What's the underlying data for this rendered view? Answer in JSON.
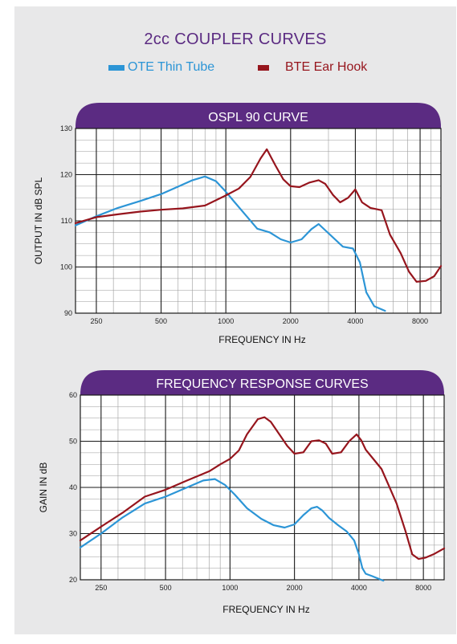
{
  "title": "2cc COUPLER CURVES",
  "legend": [
    {
      "label": "OTE Thin Tube",
      "color": "#2c95d6"
    },
    {
      "label": "BTE Ear Hook",
      "color": "#96151d"
    }
  ],
  "colors": {
    "banner": "#5b2b82",
    "ote": "#2c95d6",
    "bte": "#96151d"
  },
  "chart_data": [
    {
      "type": "line",
      "title": "OSPL 90 CURVE",
      "xlabel": "FREQUENCY IN Hz",
      "ylabel": "OUTPUT IN dB SPL",
      "x_scale": "log",
      "xlim": [
        200,
        10000
      ],
      "ylim": [
        90,
        130
      ],
      "x_ticks": [
        250,
        500,
        1000,
        2000,
        4000,
        8000
      ],
      "x_tick_labels": [
        "250",
        "500",
        "1000",
        "2000",
        "4000",
        "8000"
      ],
      "y_ticks": [
        90,
        100,
        110,
        120,
        130
      ],
      "y_tick_labels": [
        "90",
        "100",
        "110",
        "120",
        "130"
      ],
      "grid": true,
      "series": [
        {
          "name": "OTE Thin Tube",
          "color": "#2c95d6",
          "x": [
            200,
            250,
            315,
            400,
            500,
            600,
            700,
            800,
            900,
            1000,
            1100,
            1250,
            1400,
            1600,
            1800,
            2000,
            2250,
            2500,
            2700,
            3000,
            3500,
            3900,
            4200,
            4500,
            4900,
            5500
          ],
          "y": [
            109,
            111,
            112.8,
            114.3,
            115.8,
            117.4,
            118.8,
            119.6,
            118.6,
            116.3,
            114,
            111,
            108.3,
            107.5,
            106,
            105.3,
            106,
            108.2,
            109.3,
            107.3,
            104.4,
            104,
            101,
            94.5,
            91.5,
            90.5
          ]
        },
        {
          "name": "BTE Ear Hook",
          "color": "#96151d",
          "x": [
            200,
            250,
            315,
            400,
            500,
            630,
            800,
            1000,
            1150,
            1300,
            1450,
            1550,
            1700,
            1850,
            2000,
            2200,
            2450,
            2700,
            2900,
            3150,
            3400,
            3700,
            4000,
            4300,
            4700,
            5300,
            5800,
            6500,
            7100,
            7700,
            8500,
            9300,
            10000
          ],
          "y": [
            109.5,
            110.8,
            111.4,
            112,
            112.4,
            112.7,
            113.3,
            115.5,
            117,
            119.5,
            123.5,
            125.5,
            122,
            119,
            117.5,
            117.3,
            118.3,
            118.8,
            118,
            115.6,
            114,
            115,
            116.8,
            114,
            112.8,
            112.3,
            107,
            103,
            99,
            96.8,
            97,
            98,
            100.2
          ]
        }
      ]
    },
    {
      "type": "line",
      "title": "FREQUENCY RESPONSE CURVES",
      "xlabel": "FREQUENCY IN Hz",
      "ylabel": "GAIN IN dB",
      "x_scale": "log",
      "xlim": [
        200,
        10000
      ],
      "ylim": [
        20,
        60
      ],
      "x_ticks": [
        250,
        500,
        1000,
        2000,
        4000,
        8000
      ],
      "x_tick_labels": [
        "250",
        "500",
        "1000",
        "2000",
        "4000",
        "8000"
      ],
      "y_ticks": [
        20,
        30,
        40,
        50,
        60
      ],
      "y_tick_labels": [
        "20",
        "30",
        "40",
        "50",
        "60"
      ],
      "grid": true,
      "series": [
        {
          "name": "OTE Thin Tube",
          "color": "#2c95d6",
          "x": [
            200,
            250,
            315,
            400,
            500,
            630,
            750,
            850,
            950,
            1050,
            1200,
            1400,
            1600,
            1800,
            2000,
            2200,
            2400,
            2550,
            2700,
            2900,
            3200,
            3500,
            3800,
            4000,
            4150,
            4300,
            4600,
            5200
          ],
          "y": [
            27,
            30,
            33.5,
            36.5,
            38,
            40,
            41.5,
            41.8,
            40.5,
            38.5,
            35.5,
            33.2,
            31.8,
            31.3,
            32,
            34,
            35.5,
            35.8,
            35,
            33.4,
            31.8,
            30.5,
            28.5,
            25.5,
            22.5,
            21.3,
            20.8,
            19.8
          ]
        },
        {
          "name": "BTE Ear Hook",
          "color": "#96151d",
          "x": [
            200,
            250,
            315,
            400,
            500,
            630,
            800,
            900,
            1000,
            1100,
            1200,
            1350,
            1450,
            1550,
            1700,
            1850,
            2000,
            2200,
            2400,
            2600,
            2800,
            3000,
            3300,
            3600,
            3900,
            4100,
            4300,
            4700,
            5100,
            5500,
            6000,
            6600,
            7100,
            7600,
            8200,
            8900,
            10000
          ],
          "y": [
            28.5,
            31.5,
            34.5,
            38,
            39.5,
            41.5,
            43.5,
            45,
            46.2,
            48,
            51.5,
            54.8,
            55.2,
            54.2,
            51.5,
            49,
            47.3,
            47.6,
            50,
            50.2,
            49.5,
            47.3,
            47.6,
            50,
            51.5,
            50.2,
            48.2,
            46,
            44,
            40.5,
            36.5,
            30.5,
            25.5,
            24.5,
            24.8,
            25.5,
            26.8
          ]
        }
      ]
    }
  ]
}
